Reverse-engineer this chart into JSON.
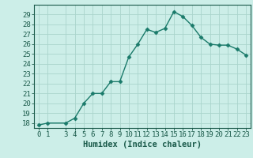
{
  "x": [
    0,
    1,
    3,
    4,
    5,
    6,
    7,
    8,
    9,
    10,
    11,
    12,
    13,
    14,
    15,
    16,
    17,
    18,
    19,
    20,
    21,
    22,
    23
  ],
  "y": [
    17.8,
    18.0,
    18.0,
    18.5,
    20.0,
    21.0,
    21.0,
    22.2,
    22.2,
    24.7,
    26.0,
    27.5,
    27.2,
    27.6,
    29.3,
    28.8,
    27.9,
    26.7,
    26.0,
    25.9,
    25.9,
    25.5,
    24.9
  ],
  "line_color": "#1a7a6a",
  "marker": "D",
  "marker_size": 2.5,
  "bg_color": "#cceee8",
  "grid_color": "#aad4cc",
  "xlabel": "Humidex (Indice chaleur)",
  "ylim": [
    17.5,
    30.0
  ],
  "xlim": [
    -0.5,
    23.5
  ],
  "yticks": [
    18,
    19,
    20,
    21,
    22,
    23,
    24,
    25,
    26,
    27,
    28,
    29
  ],
  "xticks": [
    0,
    1,
    3,
    4,
    5,
    6,
    7,
    8,
    9,
    10,
    11,
    12,
    13,
    14,
    15,
    16,
    17,
    18,
    19,
    20,
    21,
    22,
    23
  ],
  "axis_color": "#1a5a4a",
  "label_color": "#1a5a4a",
  "tick_color": "#1a5a4a",
  "tick_fontsize": 6.5,
  "xlabel_fontsize": 7.5,
  "linewidth": 1.0
}
